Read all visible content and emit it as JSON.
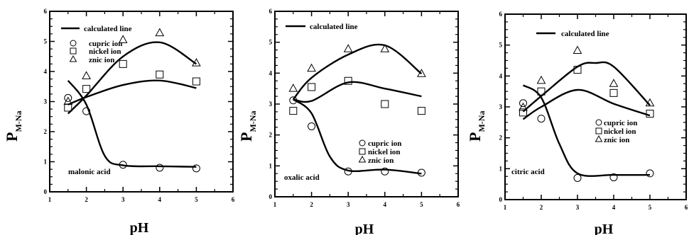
{
  "chart_data": [
    {
      "type": "scatter",
      "title": "",
      "xlabel": "pH",
      "ylabel_main": "P",
      "ylabel_sub": "M-Na",
      "xlim": [
        1,
        6
      ],
      "ylim": [
        0,
        6
      ],
      "xticks": [
        "1",
        "2",
        "3",
        "4",
        "5",
        "6"
      ],
      "yticks": [
        "0",
        "1",
        "2",
        "3",
        "4",
        "5",
        "6"
      ],
      "annotation": "malonic acid",
      "line_legend": "calculated line",
      "series": [
        {
          "name": "cupric ion",
          "marker": "circle",
          "x": [
            1.5,
            2,
            3,
            4,
            5
          ],
          "y": [
            3.12,
            2.68,
            0.9,
            0.8,
            0.78
          ],
          "curve": [
            [
              1.5,
              3.7
            ],
            [
              2.0,
              2.9
            ],
            [
              2.5,
              1.2
            ],
            [
              3.0,
              0.88
            ],
            [
              4.0,
              0.85
            ],
            [
              5.0,
              0.83
            ]
          ]
        },
        {
          "name": "nickel ion",
          "marker": "square",
          "x": [
            1.5,
            2,
            3,
            4,
            5
          ],
          "y": [
            2.8,
            3.42,
            4.25,
            3.9,
            3.67
          ],
          "curve": [
            [
              1.5,
              2.9
            ],
            [
              2.0,
              3.15
            ],
            [
              3.0,
              3.55
            ],
            [
              4.0,
              3.7
            ],
            [
              5.0,
              3.45
            ]
          ]
        },
        {
          "name": "znic ion",
          "marker": "triangle",
          "x": [
            1.5,
            2,
            3,
            4,
            5
          ],
          "y": [
            3.0,
            3.85,
            5.05,
            5.28,
            4.28
          ],
          "curve": [
            [
              1.5,
              2.6
            ],
            [
              2.0,
              3.2
            ],
            [
              3.0,
              4.5
            ],
            [
              4.0,
              4.97
            ],
            [
              5.0,
              4.25
            ]
          ]
        }
      ]
    },
    {
      "type": "scatter",
      "title": "",
      "xlabel": "pH",
      "ylabel_main": "P",
      "ylabel_sub": "M-Na",
      "xlim": [
        1,
        6
      ],
      "ylim": [
        0,
        6
      ],
      "xticks": [
        "1",
        "2",
        "3",
        "4",
        "5",
        "6"
      ],
      "yticks": [
        "0",
        "1",
        "2",
        "3",
        "4",
        "5",
        "6"
      ],
      "annotation": "oxalic acid",
      "line_legend": "calculated line",
      "series": [
        {
          "name": "cupric ion",
          "marker": "circle",
          "x": [
            1.5,
            2,
            3,
            4,
            5
          ],
          "y": [
            3.12,
            2.28,
            0.82,
            0.82,
            0.78
          ],
          "curve": [
            [
              1.5,
              3.15
            ],
            [
              2.0,
              2.7
            ],
            [
              2.5,
              1.3
            ],
            [
              3.0,
              0.85
            ],
            [
              4.0,
              0.88
            ],
            [
              5.0,
              0.75
            ]
          ]
        },
        {
          "name": "nickel ion",
          "marker": "square",
          "x": [
            1.5,
            2,
            3,
            4,
            5
          ],
          "y": [
            2.78,
            3.55,
            3.75,
            3.0,
            2.78
          ],
          "curve": [
            [
              1.5,
              3.15
            ],
            [
              2.0,
              3.1
            ],
            [
              3.0,
              3.7
            ],
            [
              4.0,
              3.5
            ],
            [
              5.0,
              3.25
            ]
          ]
        },
        {
          "name": "znic ion",
          "marker": "triangle",
          "x": [
            1.5,
            2,
            3,
            4,
            5
          ],
          "y": [
            3.5,
            4.15,
            4.78,
            4.78,
            3.98
          ],
          "curve": [
            [
              1.5,
              3.15
            ],
            [
              2.0,
              3.85
            ],
            [
              3.0,
              4.6
            ],
            [
              4.0,
              4.9
            ],
            [
              5.0,
              3.98
            ]
          ]
        }
      ]
    },
    {
      "type": "scatter",
      "title": "",
      "xlabel": "pH",
      "ylabel_main": "P",
      "ylabel_sub": "M-Na",
      "xlim": [
        1,
        6
      ],
      "ylim": [
        0,
        6
      ],
      "xticks": [
        "1",
        "2",
        "3",
        "4",
        "5",
        "6"
      ],
      "yticks": [
        "0",
        "1",
        "2",
        "3",
        "4",
        "5",
        "6"
      ],
      "annotation": "citric acid",
      "line_legend": "calculated line",
      "series": [
        {
          "name": "cupric ion",
          "marker": "circle",
          "x": [
            1.5,
            2,
            3,
            4,
            5
          ],
          "y": [
            3.12,
            2.62,
            0.7,
            0.72,
            0.85
          ],
          "curve": [
            [
              1.5,
              3.7
            ],
            [
              2.0,
              3.3
            ],
            [
              2.5,
              1.8
            ],
            [
              3.0,
              0.85
            ],
            [
              4.0,
              0.8
            ],
            [
              5.0,
              0.8
            ]
          ]
        },
        {
          "name": "nickel ion",
          "marker": "square",
          "x": [
            1.5,
            2,
            3,
            4,
            5
          ],
          "y": [
            2.82,
            3.5,
            4.2,
            3.45,
            2.78
          ],
          "curve": [
            [
              1.5,
              2.6
            ],
            [
              2.0,
              3.0
            ],
            [
              3.0,
              3.55
            ],
            [
              4.0,
              3.1
            ],
            [
              5.0,
              2.72
            ]
          ]
        },
        {
          "name": "znic ion",
          "marker": "triangle",
          "x": [
            1.5,
            2,
            3,
            4,
            5
          ],
          "y": [
            2.98,
            3.85,
            4.82,
            3.75,
            3.12
          ],
          "curve": [
            [
              1.5,
              2.85
            ],
            [
              2.0,
              3.35
            ],
            [
              3.0,
              4.3
            ],
            [
              3.5,
              4.42
            ],
            [
              4.0,
              4.3
            ],
            [
              5.0,
              3.05
            ]
          ]
        }
      ]
    }
  ]
}
